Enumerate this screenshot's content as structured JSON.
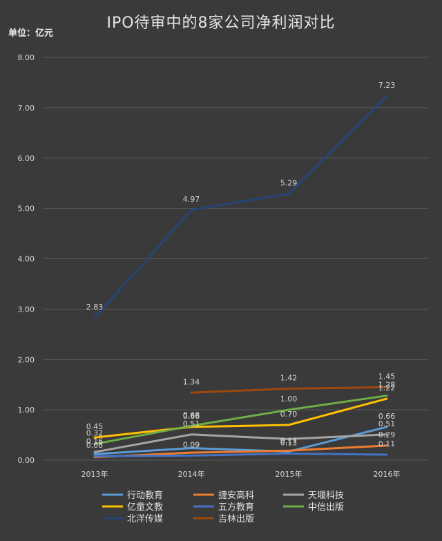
{
  "chart_data": {
    "type": "line",
    "title": "IPO待审中的8家公司净利润对比",
    "unit_label": "单位：亿元",
    "categories": [
      "2013年",
      "2014年",
      "2015年",
      "2016年"
    ],
    "ylim": [
      0,
      8
    ],
    "yticks": [
      "0.00",
      "1.00",
      "2.00",
      "3.00",
      "4.00",
      "5.00",
      "6.00",
      "7.00",
      "8.00"
    ],
    "grid": true,
    "legend_position": "bottom",
    "series": [
      {
        "name": "行动教育",
        "color": "#5b9bd5",
        "values": [
          0.12,
          0.24,
          0.17,
          0.66
        ],
        "labels": [
          "",
          "",
          "0.17",
          "0.66"
        ]
      },
      {
        "name": "捷安高科",
        "color": "#ed7d31",
        "values": [
          0.06,
          0.15,
          0.19,
          0.29
        ],
        "labels": [
          "",
          "",
          "",
          "0.29"
        ]
      },
      {
        "name": "天堰科技",
        "color": "#a5a5a5",
        "values": [
          0.16,
          0.51,
          0.42,
          0.51
        ],
        "labels": [
          "0.16",
          "0.51",
          "",
          "0.51"
        ]
      },
      {
        "name": "亿童文教",
        "color": "#ffc000",
        "values": [
          0.45,
          0.66,
          0.7,
          1.22
        ],
        "labels": [
          "0.45",
          "0.66",
          "0.70",
          "1.22"
        ]
      },
      {
        "name": "五方教育",
        "color": "#4472c4",
        "values": [
          0.08,
          0.09,
          0.13,
          0.11
        ],
        "labels": [
          "0.08",
          "0.09",
          "0.13",
          "0.11"
        ]
      },
      {
        "name": "中信出版",
        "color": "#70ad47",
        "values": [
          0.32,
          0.68,
          1.0,
          1.28
        ],
        "labels": [
          "0.32",
          "0.68",
          "1.00",
          "1.28"
        ]
      },
      {
        "name": "北洋传媒",
        "color": "#264478",
        "values": [
          2.83,
          4.97,
          5.29,
          7.23
        ],
        "labels": [
          "2.83",
          "4.97",
          "5.29",
          "7.23"
        ]
      },
      {
        "name": "吉林出版",
        "color": "#9e480e",
        "values": [
          null,
          1.34,
          1.42,
          1.45
        ],
        "labels": [
          "",
          "1.34",
          "1.42",
          "1.45"
        ]
      }
    ]
  }
}
